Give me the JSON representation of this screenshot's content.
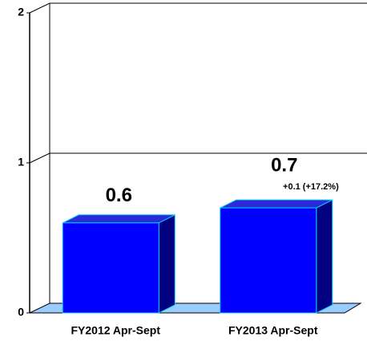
{
  "chart_data": {
    "type": "bar3d",
    "categories": [
      "FY2012 Apr-Sept",
      "FY2013 Apr-Sept"
    ],
    "values": [
      0.6,
      0.7
    ],
    "color": "#0000ff",
    "annotation": "+0.1 (+17.2%)",
    "ylim": [
      0,
      2
    ],
    "yticks": [
      0,
      1,
      2
    ],
    "grid": true
  }
}
